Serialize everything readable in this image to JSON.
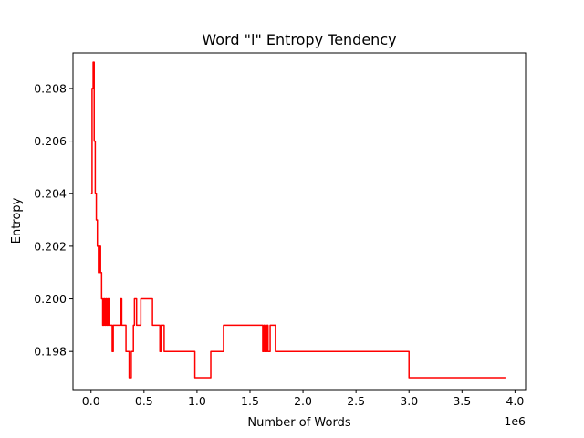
{
  "chart_data": {
    "type": "line",
    "title": "Word \"l\" Entropy Tendency",
    "xlabel": "Number of Words",
    "ylabel": "Entropy",
    "x_offset_label": "1e6",
    "x_scale": 1000000,
    "xlim": [
      -170000,
      4100000
    ],
    "ylim": [
      0.19655,
      0.20935
    ],
    "x_ticks": [
      0,
      500000,
      1000000,
      1500000,
      2000000,
      2500000,
      3000000,
      3500000,
      4000000
    ],
    "x_tick_labels": [
      "0.0",
      "0.5",
      "1.0",
      "1.5",
      "2.0",
      "2.5",
      "3.0",
      "3.5",
      "4.0"
    ],
    "y_ticks": [
      0.198,
      0.2,
      0.202,
      0.204,
      0.206,
      0.208
    ],
    "y_tick_labels": [
      "0.198",
      "0.200",
      "0.202",
      "0.204",
      "0.206",
      "0.208"
    ],
    "grid": false,
    "series": [
      {
        "color": "#ff0000",
        "step": true,
        "x": [
          0,
          10000,
          20000,
          30000,
          40000,
          50000,
          60000,
          70000,
          80000,
          90000,
          100000,
          110000,
          120000,
          130000,
          140000,
          150000,
          160000,
          170000,
          180000,
          190000,
          200000,
          210000,
          230000,
          260000,
          280000,
          290000,
          300000,
          330000,
          360000,
          380000,
          400000,
          410000,
          430000,
          470000,
          560000,
          580000,
          650000,
          660000,
          670000,
          690000,
          700000,
          730000,
          980000,
          1130000,
          1140000,
          1250000,
          1500000,
          1600000,
          1620000,
          1630000,
          1640000,
          1650000,
          1660000,
          1670000,
          1690000,
          1700000,
          1710000,
          1720000,
          1740000,
          1750000,
          2000000,
          2500000,
          2990000,
          3000000,
          3500000,
          3910000
        ],
        "y": [
          0.204,
          0.208,
          0.209,
          0.206,
          0.204,
          0.203,
          0.202,
          0.201,
          0.202,
          0.201,
          0.2,
          0.199,
          0.2,
          0.199,
          0.2,
          0.199,
          0.2,
          0.199,
          0.199,
          0.199,
          0.198,
          0.199,
          0.199,
          0.199,
          0.2,
          0.199,
          0.199,
          0.198,
          0.197,
          0.198,
          0.199,
          0.2,
          0.199,
          0.2,
          0.2,
          0.199,
          0.198,
          0.199,
          0.199,
          0.198,
          0.198,
          0.198,
          0.197,
          0.198,
          0.198,
          0.199,
          0.199,
          0.199,
          0.198,
          0.199,
          0.198,
          0.198,
          0.199,
          0.198,
          0.199,
          0.199,
          0.199,
          0.199,
          0.198,
          0.198,
          0.198,
          0.198,
          0.198,
          0.197,
          0.197,
          0.197
        ]
      }
    ]
  }
}
